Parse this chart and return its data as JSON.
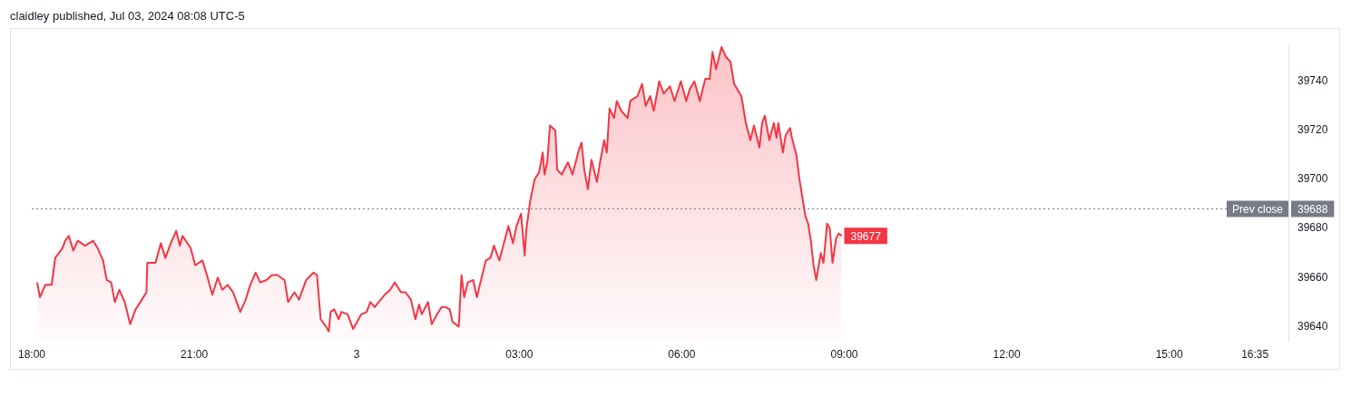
{
  "chart_data": {
    "type": "area",
    "title": "claidley published, Jul 03, 2024 08:08 UTC-5",
    "x": [
      "2024-07-02T18:06",
      "2024-07-02T18:09",
      "2024-07-02T18:15",
      "2024-07-02T18:22",
      "2024-07-02T18:26",
      "2024-07-02T18:34",
      "2024-07-02T18:37",
      "2024-07-02T18:41",
      "2024-07-02T18:46",
      "2024-07-02T18:51",
      "2024-07-02T18:59",
      "2024-07-02T19:08",
      "2024-07-02T19:13",
      "2024-07-02T19:19",
      "2024-07-02T19:23",
      "2024-07-02T19:28",
      "2024-07-02T19:32",
      "2024-07-02T19:37",
      "2024-07-02T19:43",
      "2024-07-02T19:49",
      "2024-07-02T19:55",
      "2024-07-02T20:02",
      "2024-07-02T20:07",
      "2024-07-02T20:08",
      "2024-07-02T20:17",
      "2024-07-02T20:23",
      "2024-07-02T20:28",
      "2024-07-02T20:34",
      "2024-07-02T20:40",
      "2024-07-02T20:44",
      "2024-07-02T20:47",
      "2024-07-02T20:56",
      "2024-07-02T21:01",
      "2024-07-02T21:09",
      "2024-07-02T21:14",
      "2024-07-02T21:20",
      "2024-07-02T21:26",
      "2024-07-02T21:31",
      "2024-07-02T21:37",
      "2024-07-02T21:43",
      "2024-07-02T21:51",
      "2024-07-02T21:57",
      "2024-07-02T22:02",
      "2024-07-02T22:08",
      "2024-07-02T22:13",
      "2024-07-02T22:20",
      "2024-07-02T22:26",
      "2024-07-02T22:32",
      "2024-07-02T22:40",
      "2024-07-02T22:44",
      "2024-07-02T22:51",
      "2024-07-02T22:56",
      "2024-07-02T23:04",
      "2024-07-02T23:12",
      "2024-07-02T23:16",
      "2024-07-02T23:20",
      "2024-07-02T23:26",
      "2024-07-02T23:29",
      "2024-07-02T23:31",
      "2024-07-02T23:35",
      "2024-07-02T23:40",
      "2024-07-02T23:43",
      "2024-07-02T23:50",
      "2024-07-02T23:56",
      "2024-07-03T00:05",
      "2024-07-03T00:11",
      "2024-07-03T00:15",
      "2024-07-03T00:20",
      "2024-07-03T00:31",
      "2024-07-03T00:37",
      "2024-07-03T00:42",
      "2024-07-03T00:49",
      "2024-07-03T00:54",
      "2024-07-03T01:00",
      "2024-07-03T01:05",
      "2024-07-03T01:09",
      "2024-07-03T01:12",
      "2024-07-03T01:19",
      "2024-07-03T01:23",
      "2024-07-03T01:29",
      "2024-07-03T01:34",
      "2024-07-03T01:38",
      "2024-07-03T01:43",
      "2024-07-03T01:46",
      "2024-07-03T01:53",
      "2024-07-03T01:56",
      "2024-07-03T01:59",
      "2024-07-03T02:03",
      "2024-07-03T02:09",
      "2024-07-03T02:13",
      "2024-07-03T02:19",
      "2024-07-03T02:23",
      "2024-07-03T02:28",
      "2024-07-03T02:32",
      "2024-07-03T02:38",
      "2024-07-03T02:43",
      "2024-07-03T02:48",
      "2024-07-03T02:53",
      "2024-07-03T02:57",
      "2024-07-03T03:02",
      "2024-07-03T03:06",
      "2024-07-03T03:08",
      "2024-07-03T03:12",
      "2024-07-03T03:17",
      "2024-07-03T03:22",
      "2024-07-03T03:26",
      "2024-07-03T03:28",
      "2024-07-03T03:31",
      "2024-07-03T03:34",
      "2024-07-03T03:40",
      "2024-07-03T03:42",
      "2024-07-03T03:47",
      "2024-07-03T03:54",
      "2024-07-03T03:59",
      "2024-07-03T04:06",
      "2024-07-03T04:09",
      "2024-07-03T04:12",
      "2024-07-03T04:16",
      "2024-07-03T04:20",
      "2024-07-03T04:26",
      "2024-07-03T04:29",
      "2024-07-03T04:34",
      "2024-07-03T04:37",
      "2024-07-03T04:40",
      "2024-07-03T04:45",
      "2024-07-03T04:48",
      "2024-07-03T04:53",
      "2024-07-03T05:00",
      "2024-07-03T05:03",
      "2024-07-03T05:11",
      "2024-07-03T05:16",
      "2024-07-03T05:20",
      "2024-07-03T05:25",
      "2024-07-03T05:29",
      "2024-07-03T05:35",
      "2024-07-03T05:40",
      "2024-07-03T05:47",
      "2024-07-03T05:52",
      "2024-07-03T05:59",
      "2024-07-03T06:05",
      "2024-07-03T06:09",
      "2024-07-03T06:14",
      "2024-07-03T06:20",
      "2024-07-03T06:26",
      "2024-07-03T06:31",
      "2024-07-03T06:34",
      "2024-07-03T06:38",
      "2024-07-03T06:44",
      "2024-07-03T06:49",
      "2024-07-03T06:54",
      "2024-07-03T06:58",
      "2024-07-03T07:06",
      "2024-07-03T07:11",
      "2024-07-03T07:16",
      "2024-07-03T07:20",
      "2024-07-03T07:26",
      "2024-07-03T07:29",
      "2024-07-03T07:32",
      "2024-07-03T07:37",
      "2024-07-03T07:42",
      "2024-07-03T07:45",
      "2024-07-03T07:47",
      "2024-07-03T07:52",
      "2024-07-03T07:55",
      "2024-07-03T08:00",
      "2024-07-03T08:02",
      "2024-07-03T08:07",
      "2024-07-03T08:10",
      "2024-07-03T08:13",
      "2024-07-03T08:17",
      "2024-07-03T08:20",
      "2024-07-03T08:23",
      "2024-07-03T08:26",
      "2024-07-03T08:29",
      "2024-07-03T08:34",
      "2024-07-03T08:37",
      "2024-07-03T08:41",
      "2024-07-03T08:44",
      "2024-07-03T08:47",
      "2024-07-03T08:51",
      "2024-07-03T08:54",
      "2024-07-03T08:57"
    ],
    "series": [
      {
        "color": "#f23645",
        "values": [
          39658,
          39652,
          39657,
          39657,
          39668,
          39672,
          39675,
          39677,
          39671,
          39675,
          39673,
          39675,
          39672,
          39667,
          39659,
          39658,
          39650,
          39655,
          39650,
          39641,
          39647,
          39651,
          39654,
          39666,
          39666,
          39674,
          39668,
          39674,
          39679,
          39673,
          39677,
          39672,
          39665,
          39667,
          39661,
          39653,
          39660,
          39655,
          39657,
          39654,
          39646,
          39651,
          39657,
          39662,
          39658,
          39659,
          39661,
          39661,
          39659,
          39650,
          39654,
          39651,
          39659,
          39662,
          39661,
          39643,
          39640,
          39638,
          39646,
          39647,
          39643,
          39646,
          39645,
          39639,
          39645,
          39646,
          39650,
          39648,
          39653,
          39655,
          39658,
          39654,
          39654,
          39651,
          39643,
          39649,
          39645,
          39650,
          39641,
          39645,
          39648,
          39648,
          39647,
          39642,
          39640,
          39661,
          39652,
          39658,
          39659,
          39652,
          39661,
          39667,
          39668,
          39673,
          39667,
          39674,
          39681,
          39674,
          39681,
          39686,
          39669,
          39680,
          39691,
          39700,
          39703,
          39711,
          39702,
          39707,
          39722,
          39720,
          39704,
          39702,
          39707,
          39702,
          39712,
          39715,
          39704,
          39696,
          39708,
          39699,
          39706,
          39716,
          39711,
          39729,
          39725,
          39732,
          39728,
          39725,
          39732,
          39734,
          39739,
          39730,
          39734,
          39728,
          39740,
          39735,
          39738,
          39732,
          39740,
          39732,
          39737,
          39740,
          39732,
          39741,
          39741,
          39752,
          39745,
          39754,
          39750,
          39748,
          39739,
          39734,
          39723,
          39716,
          39722,
          39713,
          39723,
          39726,
          39716,
          39723,
          39717,
          39723,
          39711,
          39718,
          39721,
          39717,
          39710,
          39701,
          39694,
          39685,
          39682,
          39675,
          39665,
          39659,
          39670,
          39666,
          39682,
          39680,
          39666,
          39676,
          39678,
          39677
        ]
      }
    ],
    "xlim": [
      "2024-07-02T18:00",
      "2024-07-03T17:12"
    ],
    "xticks": [
      {
        "value": "2024-07-02T18:00",
        "label": "18:00"
      },
      {
        "value": "2024-07-02T21:00",
        "label": "21:00"
      },
      {
        "value": "2024-07-03T00:00",
        "label": "3"
      },
      {
        "value": "2024-07-03T03:00",
        "label": "03:00"
      },
      {
        "value": "2024-07-03T06:00",
        "label": "06:00"
      },
      {
        "value": "2024-07-03T09:00",
        "label": "09:00"
      },
      {
        "value": "2024-07-03T12:00",
        "label": "12:00"
      },
      {
        "value": "2024-07-03T15:00",
        "label": "15:00"
      },
      {
        "value": "2024-07-03T16:35",
        "label": "16:35"
      }
    ],
    "ylim": [
      39634,
      39755
    ],
    "yticks": [
      39640,
      39660,
      39680,
      39700,
      39720,
      39740
    ],
    "ref_lines": [
      {
        "axis": "y",
        "value": 39688,
        "label": "Prev close",
        "color": "#787b86",
        "line_style": "dotted"
      }
    ],
    "annotations": [
      {
        "text": "39688",
        "x": "2024-07-03T17:12",
        "y": 39688
      },
      {
        "text": "39677",
        "x": "2024-07-03T08:57",
        "y": 39677
      }
    ],
    "grid": false,
    "legend": false,
    "marker": "none",
    "line_style": "solid"
  }
}
